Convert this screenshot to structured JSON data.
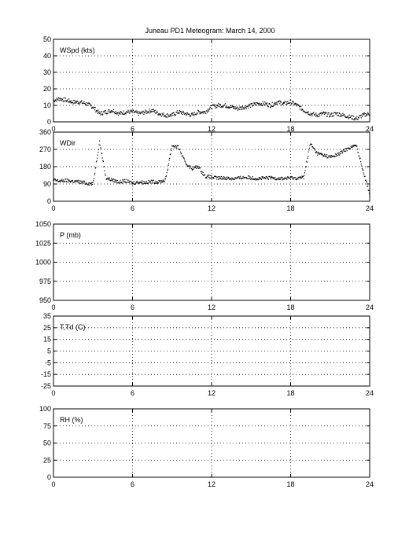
{
  "title": "Juneau PD1 Meteogram:      March 14, 2000",
  "colors": {
    "axes": "#000000",
    "data": "#000000",
    "background": "#ffffff"
  },
  "chart_data": [
    {
      "type": "scatter",
      "panel": "wspd",
      "label": "WSpd (kts)",
      "xlim": [
        0,
        24
      ],
      "xticks": [
        0,
        6,
        12,
        18,
        24
      ],
      "ylim": [
        0,
        50
      ],
      "yticks": [
        0,
        10,
        20,
        30,
        40,
        50
      ],
      "grid": true,
      "series": [
        {
          "x": [
            0,
            0.5,
            1,
            1.5,
            2,
            2.5,
            3,
            3.5,
            4,
            4.5,
            5,
            5.5,
            6,
            6.5,
            7,
            7.5,
            8,
            8.5,
            9,
            9.5,
            10,
            10.5,
            11,
            11.5,
            12,
            12.5,
            13,
            13.5,
            14,
            14.5,
            15,
            15.5,
            16,
            16.5,
            17,
            17.5,
            18,
            18.5,
            19,
            19.5,
            20,
            20.5,
            21,
            21.5,
            22,
            22.5,
            23,
            23.5,
            24
          ],
          "y": [
            13,
            14,
            13,
            12,
            12,
            11,
            9,
            5,
            6,
            7,
            5,
            6,
            6,
            5,
            6,
            7,
            5,
            4,
            4,
            6,
            5,
            4,
            6,
            6,
            9,
            10,
            10,
            9,
            8,
            9,
            10,
            11,
            11,
            10,
            12,
            11,
            12,
            10,
            7,
            5,
            4,
            5,
            4,
            5,
            4,
            3,
            2,
            4,
            5
          ]
        }
      ]
    },
    {
      "type": "scatter",
      "panel": "wdir",
      "label": "WDir",
      "xlim": [
        0,
        24
      ],
      "xticks": [
        0,
        6,
        12,
        18,
        24
      ],
      "ylim": [
        0,
        360
      ],
      "yticks": [
        0,
        90,
        180,
        270,
        360
      ],
      "grid": true,
      "series": [
        {
          "x": [
            0,
            0.5,
            1,
            1.5,
            2,
            2.5,
            3,
            3.5,
            4,
            4.5,
            5,
            5.5,
            6,
            6.5,
            7,
            7.5,
            8,
            8.5,
            9,
            9.5,
            10,
            10.5,
            11,
            11.5,
            12,
            12.5,
            13,
            13.5,
            14,
            14.5,
            15,
            15.5,
            16,
            16.5,
            17,
            17.5,
            18,
            18.5,
            19,
            19.5,
            20,
            20.5,
            21,
            21.5,
            22,
            22.5,
            23,
            23.5,
            24
          ],
          "y": [
            110,
            105,
            108,
            104,
            100,
            95,
            90,
            310,
            120,
            110,
            100,
            105,
            95,
            100,
            98,
            102,
            100,
            110,
            290,
            280,
            200,
            170,
            180,
            130,
            125,
            120,
            122,
            118,
            120,
            125,
            122,
            118,
            120,
            122,
            120,
            118,
            122,
            120,
            125,
            300,
            250,
            240,
            230,
            240,
            260,
            280,
            290,
            160,
            40
          ]
        }
      ]
    },
    {
      "type": "scatter",
      "panel": "pres",
      "label": "P (mb)",
      "xlim": [
        0,
        24
      ],
      "xticks": [
        0,
        6,
        12,
        18,
        24
      ],
      "ylim": [
        950,
        1050
      ],
      "yticks": [
        950,
        975,
        1000,
        1025,
        1050
      ],
      "grid": true,
      "series": []
    },
    {
      "type": "scatter",
      "panel": "temp",
      "label": "T,Td (C)",
      "xlim": [
        0,
        24
      ],
      "xticks": [
        0,
        6,
        12,
        18,
        24
      ],
      "ylim": [
        -25,
        35
      ],
      "yticks": [
        -25,
        -15,
        -5,
        5,
        15,
        25,
        35
      ],
      "grid": true,
      "series": []
    },
    {
      "type": "scatter",
      "panel": "rh",
      "label": "RH (%)",
      "xlim": [
        0,
        24
      ],
      "xticks": [
        0,
        6,
        12,
        18,
        24
      ],
      "ylim": [
        0,
        100
      ],
      "yticks": [
        0,
        25,
        50,
        75,
        100
      ],
      "grid": true,
      "series": []
    }
  ]
}
